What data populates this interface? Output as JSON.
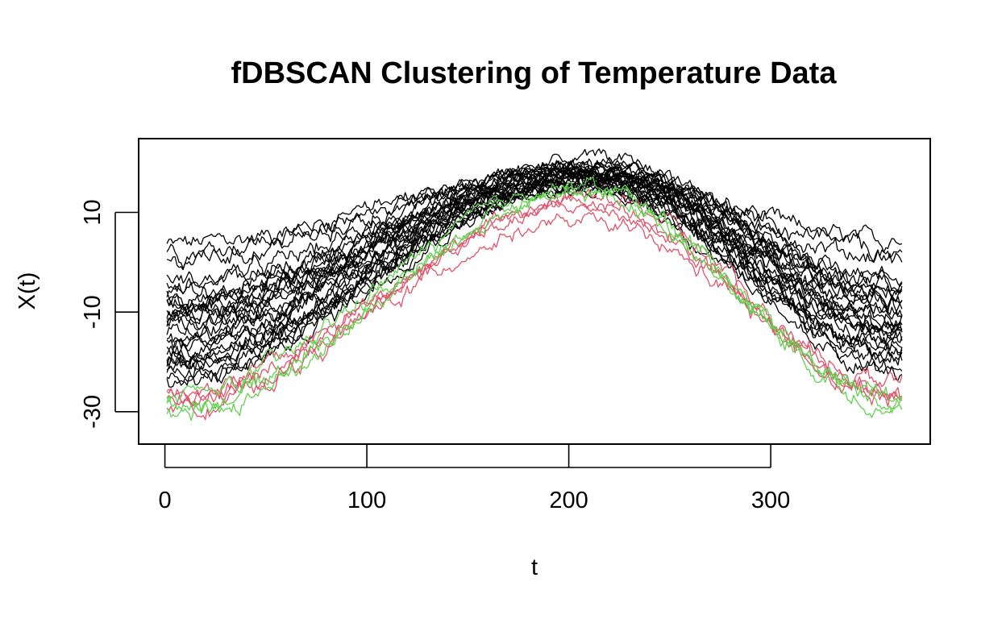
{
  "chart_data": {
    "type": "line",
    "title": "fDBSCAN Clustering of Temperature Data",
    "xlabel": "t",
    "ylabel": "X(t)",
    "xlim": [
      -13,
      379
    ],
    "ylim": [
      -36.5,
      24.8
    ],
    "x_ticks": [
      0,
      100,
      200,
      300
    ],
    "y_ticks": [
      -30,
      -10,
      10
    ],
    "x_range": [
      1,
      365
    ],
    "legend": "none",
    "grid": false,
    "clusters": [
      {
        "color": "#000000",
        "curves": [
          {
            "start": 3.5,
            "peak": 17.5,
            "end": 3.5,
            "peak_day": 200
          },
          {
            "start": 2.5,
            "peak": 17,
            "end": 2,
            "peak_day": 202
          },
          {
            "start": 0.5,
            "peak": 18,
            "end": 1,
            "peak_day": 205
          },
          {
            "start": -4,
            "peak": 19,
            "end": -3,
            "peak_day": 208
          },
          {
            "start": -5,
            "peak": 18.5,
            "end": -4.5,
            "peak_day": 210
          },
          {
            "start": -6,
            "peak": 19.5,
            "end": -5,
            "peak_day": 206
          },
          {
            "start": -7,
            "peak": 18,
            "end": -6,
            "peak_day": 212
          },
          {
            "start": -8,
            "peak": 17,
            "end": -7,
            "peak_day": 200
          },
          {
            "start": -9,
            "peak": 20,
            "end": -8,
            "peak_day": 215
          },
          {
            "start": -10,
            "peak": 18,
            "end": -9,
            "peak_day": 208
          },
          {
            "start": -11,
            "peak": 16.5,
            "end": -10,
            "peak_day": 205
          },
          {
            "start": -12,
            "peak": 19,
            "end": -11,
            "peak_day": 210
          },
          {
            "start": -13,
            "peak": 17.5,
            "end": -12,
            "peak_day": 212
          },
          {
            "start": -14,
            "peak": 20.5,
            "end": -12.5,
            "peak_day": 213
          },
          {
            "start": -15,
            "peak": 16,
            "end": -13,
            "peak_day": 208
          },
          {
            "start": -16,
            "peak": 18.5,
            "end": -14,
            "peak_day": 210
          },
          {
            "start": -17,
            "peak": 17,
            "end": -15,
            "peak_day": 206
          },
          {
            "start": -18,
            "peak": 19,
            "end": -16,
            "peak_day": 211
          },
          {
            "start": -19,
            "peak": 15.5,
            "end": -17,
            "peak_day": 209
          },
          {
            "start": -20,
            "peak": 18,
            "end": -18,
            "peak_day": 214
          },
          {
            "start": -21,
            "peak": 16.5,
            "end": -19,
            "peak_day": 207
          },
          {
            "start": -22,
            "peak": 17.5,
            "end": -20,
            "peak_day": 212
          },
          {
            "start": -23,
            "peak": 15,
            "end": -21,
            "peak_day": 205
          },
          {
            "start": -24,
            "peak": 16,
            "end": -22,
            "peak_day": 210
          },
          {
            "start": -12,
            "peak": 21,
            "end": -8,
            "peak_day": 216
          },
          {
            "start": -8.5,
            "peak": 15,
            "end": -6,
            "peak_day": 203
          },
          {
            "start": -19,
            "peak": 17,
            "end": -13,
            "peak_day": 214
          },
          {
            "start": -21,
            "peak": 15.5,
            "end": -17,
            "peak_day": 207
          }
        ]
      },
      {
        "color": "#DF536B",
        "curves": [
          {
            "start": -26,
            "peak": 13,
            "end": -26,
            "peak_day": 212
          },
          {
            "start": -27,
            "peak": 12,
            "end": -27,
            "peak_day": 210
          },
          {
            "start": -28,
            "peak": 11,
            "end": -26.5,
            "peak_day": 208
          },
          {
            "start": -29,
            "peak": 8,
            "end": -24,
            "peak_day": 205
          }
        ]
      },
      {
        "color": "#61D04F",
        "curves": [
          {
            "start": -27,
            "peak": 15.5,
            "end": -28,
            "peak_day": 205
          },
          {
            "start": -29,
            "peak": 14.5,
            "end": -28.5,
            "peak_day": 210
          },
          {
            "start": -31,
            "peak": 13.5,
            "end": -27,
            "peak_day": 207
          }
        ]
      }
    ]
  }
}
